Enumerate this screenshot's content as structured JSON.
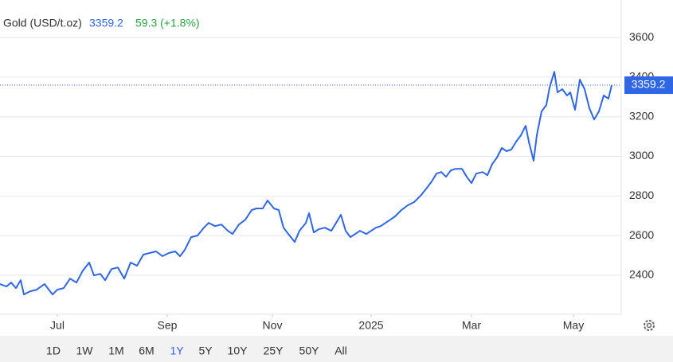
{
  "chart_data": {
    "type": "line",
    "title": "Gold (USD/t.oz)",
    "last_value": 3359.2,
    "change_label": "59.3 (+1.8%)",
    "x": [
      0,
      4,
      7,
      10,
      13,
      15,
      19,
      23,
      28,
      33,
      36,
      40,
      44,
      48,
      52,
      56,
      59,
      63,
      66,
      70,
      74,
      78,
      82,
      86,
      90,
      94,
      98,
      102,
      106,
      110,
      113,
      116,
      120,
      124,
      128,
      131,
      135,
      139,
      143,
      146,
      150,
      154,
      158,
      161,
      165,
      168,
      172,
      175,
      178,
      181,
      185,
      188,
      192,
      194,
      197,
      200,
      204,
      208,
      211,
      214,
      217,
      220,
      223,
      226,
      230,
      233,
      236,
      239,
      242,
      245,
      248,
      252,
      256,
      260,
      264,
      268,
      271,
      274,
      277,
      280,
      283,
      286,
      290,
      293,
      296,
      299,
      303,
      306,
      309,
      312,
      315,
      318,
      321,
      324,
      327,
      330,
      332,
      335,
      337,
      340,
      343,
      345,
      348,
      350,
      353,
      356,
      358,
      361,
      364,
      367,
      370,
      373,
      376,
      379,
      382,
      384
    ],
    "series": [
      {
        "color": "#2f66e3",
        "values": [
          2355,
          2343,
          2363,
          2335,
          2375,
          2303,
          2319,
          2327,
          2355,
          2303,
          2327,
          2335,
          2383,
          2363,
          2423,
          2464,
          2399,
          2407,
          2375,
          2431,
          2439,
          2383,
          2464,
          2448,
          2504,
          2512,
          2520,
          2496,
          2512,
          2520,
          2496,
          2528,
          2592,
          2600,
          2640,
          2664,
          2648,
          2656,
          2624,
          2608,
          2656,
          2680,
          2729,
          2737,
          2737,
          2777,
          2737,
          2729,
          2640,
          2608,
          2568,
          2624,
          2664,
          2713,
          2616,
          2632,
          2640,
          2624,
          2664,
          2705,
          2624,
          2592,
          2608,
          2624,
          2608,
          2624,
          2640,
          2648,
          2664,
          2680,
          2697,
          2729,
          2753,
          2769,
          2801,
          2841,
          2873,
          2913,
          2921,
          2897,
          2929,
          2937,
          2937,
          2897,
          2865,
          2913,
          2921,
          2905,
          2961,
          2994,
          3042,
          3026,
          3034,
          3074,
          3106,
          3154,
          3074,
          2978,
          3106,
          3227,
          3259,
          3347,
          3427,
          3323,
          3339,
          3307,
          3323,
          3235,
          3387,
          3339,
          3243,
          3186,
          3227,
          3307,
          3291,
          3359.2
        ]
      }
    ],
    "xlim": [
      0,
      390
    ],
    "xticks": [
      {
        "value": 36,
        "label": "Jul"
      },
      {
        "value": 105,
        "label": "Sep"
      },
      {
        "value": 171,
        "label": "Nov"
      },
      {
        "value": 233,
        "label": "2025"
      },
      {
        "value": 296,
        "label": "Mar"
      },
      {
        "value": 360,
        "label": "May"
      }
    ],
    "ylim": [
      2203,
      3789
    ],
    "yticks": [
      2400,
      2600,
      2800,
      3000,
      3200,
      3400,
      3600
    ],
    "grid": true,
    "ranges": [
      "1D",
      "1W",
      "1M",
      "6M",
      "1Y",
      "5Y",
      "10Y",
      "25Y",
      "50Y",
      "All"
    ],
    "selected_range": "1Y"
  }
}
